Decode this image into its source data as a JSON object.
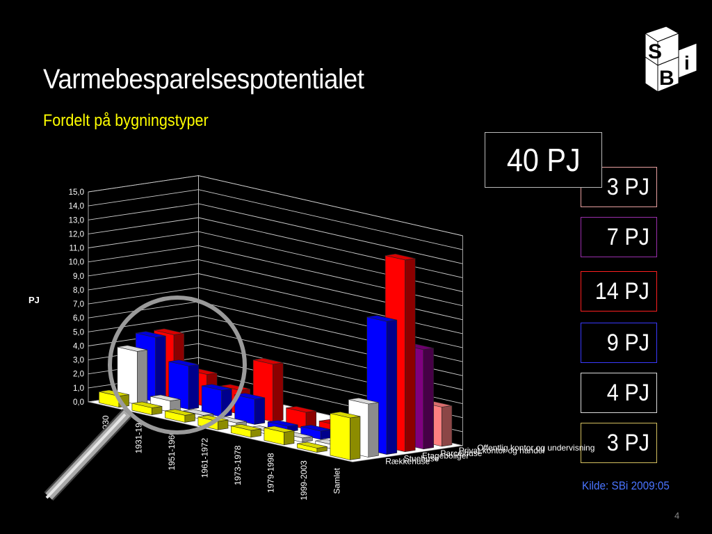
{
  "slide": {
    "title": "Varmebesparelsespotentialet",
    "subtitle": "Fordelt på bygningstyper",
    "source": "Kilde: SBi 2009:05",
    "page_number": "4",
    "logo_letters": [
      "S",
      "B",
      "i"
    ]
  },
  "total": {
    "label": "40 PJ"
  },
  "breakdown": [
    {
      "label": "3 PJ",
      "color": "#e8a0a0"
    },
    {
      "label": "7 PJ",
      "color": "#9b2fae"
    },
    {
      "label": "14 PJ",
      "color": "#ff2020"
    },
    {
      "label": "9 PJ",
      "color": "#3a3aff"
    },
    {
      "label": "4 PJ",
      "color": "#dddddd"
    },
    {
      "label": "3 PJ",
      "color": "#d4c060"
    }
  ],
  "chart_data": {
    "type": "bar",
    "subtype": "3d-grouped",
    "ylabel": "PJ",
    "ylim": [
      0,
      15
    ],
    "ytick_step": 1,
    "y_ticks": [
      "0,0",
      "1,0",
      "2,0",
      "3,0",
      "4,0",
      "5,0",
      "6,0",
      "7,0",
      "8,0",
      "9,0",
      "10,0",
      "11,0",
      "12,0",
      "13,0",
      "14,0",
      "15,0"
    ],
    "categories": [
      "1930",
      "1931-1950",
      "1951-1960",
      "1961-1972",
      "1973-1978",
      "1979-1998",
      "1999-2003",
      "Samlet"
    ],
    "categories_shown": [
      "1930",
      "1931-19",
      "1951-1960",
      "1961-1972",
      "1973-1978",
      "1979-1998",
      "1999-2003",
      "Samlet"
    ],
    "series": [
      {
        "name": "Rækkehuse",
        "color": "#ffff00",
        "values": [
          0.8,
          0.5,
          0.5,
          0.6,
          0.5,
          0.9,
          0.3,
          3.0
        ]
      },
      {
        "name": "Stuehuse",
        "color": "#ffffff",
        "values": [
          3.8,
          0.8,
          0.3,
          0.3,
          0.2,
          0.3,
          0.3,
          3.8
        ]
      },
      {
        "name": "Etageboliger",
        "color": "#0000ff",
        "values": [
          4.6,
          3.1,
          1.9,
          1.8,
          0.4,
          0.6,
          0.1,
          9.5
        ]
      },
      {
        "name": "Parcelhuse",
        "color": "#ff0000",
        "values": [
          4.6,
          2.3,
          1.7,
          4.1,
          1.2,
          0.8,
          0.1,
          13.7
        ]
      },
      {
        "name": "Privat kontor og handel",
        "color": "#800080",
        "values": [
          0.0,
          0.0,
          0.0,
          0.0,
          0.0,
          0.0,
          0.0,
          7.1
        ]
      },
      {
        "name": "Offentlig kontor og undervisning",
        "color": "#ff8080",
        "values": [
          0.0,
          0.0,
          0.0,
          0.0,
          0.0,
          0.0,
          0.0,
          2.8
        ]
      }
    ],
    "grid": true
  }
}
